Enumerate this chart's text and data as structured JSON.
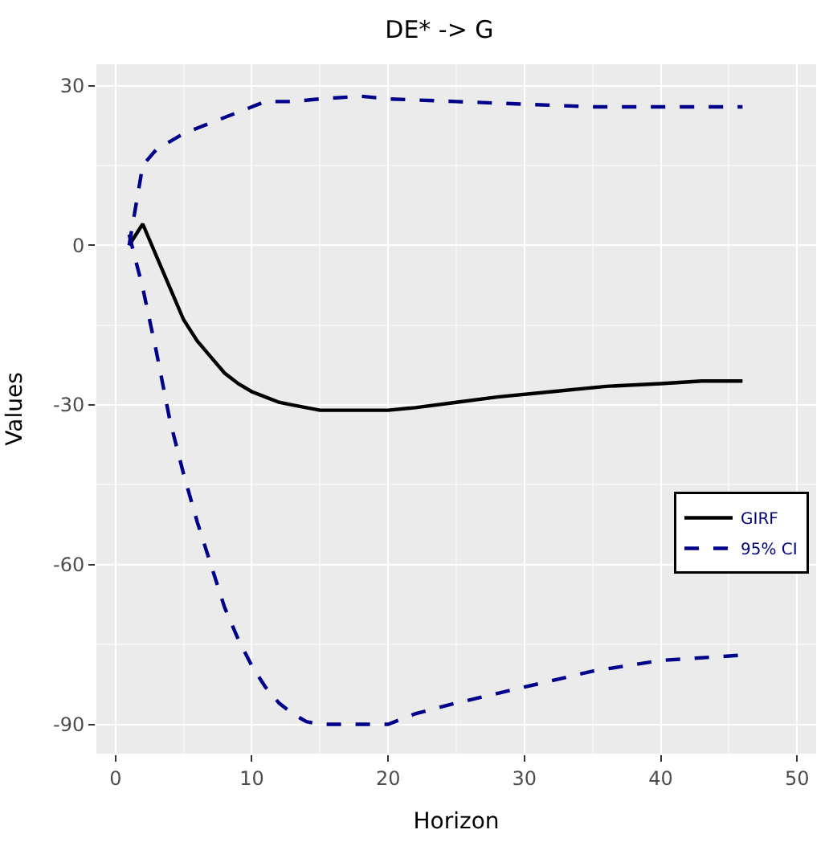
{
  "chart_data": {
    "type": "line",
    "title": "DE* -> G",
    "xlabel": "Horizon",
    "ylabel": "Values",
    "xlim": [
      -1.4,
      51.4
    ],
    "ylim": [
      -95.5,
      34
    ],
    "xticks": [
      0,
      10,
      20,
      30,
      40,
      50
    ],
    "yticks": [
      -90,
      -60,
      -30,
      0,
      30
    ],
    "grid": true,
    "legend": "right",
    "series": [
      {
        "name": "GIRF",
        "color": "#000000",
        "line_style": "solid",
        "x": [
          1,
          2,
          3,
          4,
          5,
          6,
          7,
          8,
          9,
          10,
          11,
          12,
          13,
          14,
          15,
          16,
          18,
          20,
          22,
          25,
          28,
          32,
          36,
          40,
          43,
          46
        ],
        "values": [
          0,
          4,
          -2,
          -8,
          -14,
          -18,
          -21,
          -24,
          -26,
          -27.5,
          -28.5,
          -29.5,
          -30,
          -30.5,
          -31,
          -31,
          -31,
          -31,
          -30.5,
          -29.5,
          -28.5,
          -27.5,
          -26.5,
          -26,
          -25.5,
          -25.5
        ]
      },
      {
        "name": "95% CI",
        "color": "#00008b",
        "line_style": "dashed",
        "x": [
          1,
          2,
          3,
          4,
          5,
          6,
          7,
          9,
          11,
          13,
          15,
          18,
          20,
          25,
          30,
          35,
          40,
          46
        ],
        "values": [
          0,
          15,
          18,
          19.5,
          21,
          22,
          23,
          25,
          27,
          27,
          27.5,
          28,
          27.5,
          27,
          26.5,
          26,
          26,
          26
        ]
      },
      {
        "color": "#00008b",
        "line_style": "dashed",
        "x": [
          1,
          2,
          3,
          4,
          5,
          6,
          7,
          8,
          9,
          10,
          11,
          12,
          13,
          14,
          15,
          17,
          20,
          22,
          25,
          30,
          35,
          40,
          46
        ],
        "values": [
          2,
          -8,
          -20,
          -33,
          -43,
          -52,
          -60,
          -68,
          -74,
          -79,
          -83,
          -86,
          -88,
          -89.5,
          -90,
          -90,
          -90,
          -88,
          -86,
          -83,
          -80,
          -78,
          -77
        ]
      }
    ]
  }
}
